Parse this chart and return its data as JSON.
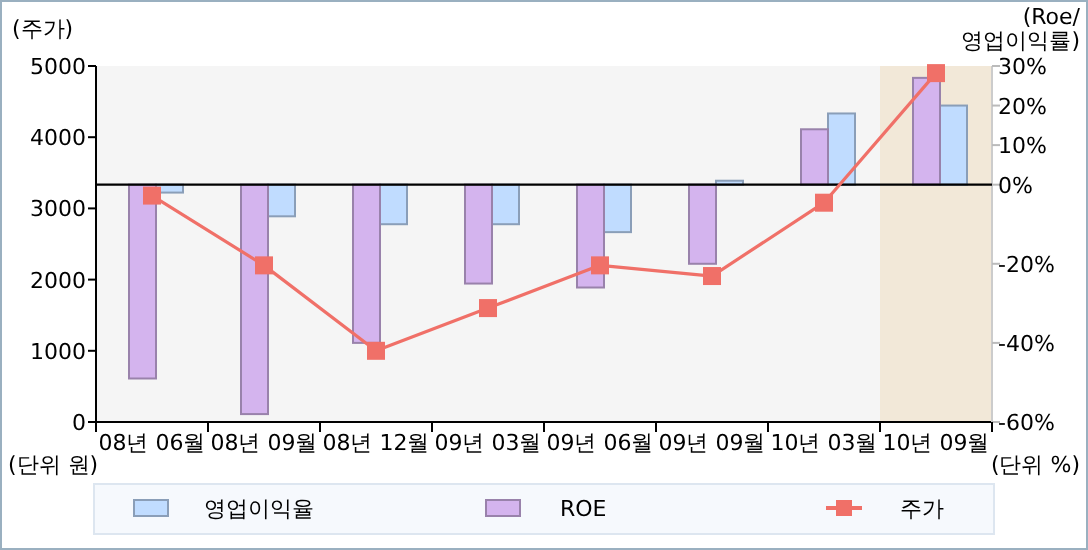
{
  "chart_data": {
    "type": "bar",
    "ylabel": "(주가)",
    "y2label": "(Roe/\n영업이익률)",
    "categories": [
      "08년 06월",
      "08년 09월",
      "08년 12월",
      "09년 03월",
      "09년 06월",
      "09년 09월",
      "10년 03월",
      "10년 09월"
    ],
    "series": [
      {
        "name": "영업이익율",
        "color": "#c0dcff",
        "axis": "y2",
        "values": [
          -2,
          -8,
          -10,
          -10,
          -12,
          1,
          18,
          20
        ]
      },
      {
        "name": "ROE",
        "color": "#d4b4ee",
        "axis": "y2",
        "values": [
          -49,
          -58,
          -40,
          -25,
          -26,
          -20,
          14,
          27
        ]
      },
      {
        "name": "주가",
        "type": "line",
        "color": "#f07068",
        "marker": "square",
        "values": [
          3180,
          2200,
          1000,
          1600,
          2200,
          2050,
          3080,
          4900
        ]
      }
    ],
    "ylim": [
      0,
      5000
    ],
    "yticks": [
      0,
      1000,
      2000,
      3000,
      4000,
      5000
    ],
    "y2lim": [
      -60,
      30
    ],
    "y2ticks": [
      {
        "value": 30,
        "label": "30%"
      },
      {
        "value": 20,
        "label": "20%"
      },
      {
        "value": 10,
        "label": "10%"
      },
      {
        "value": 0,
        "label": "0%"
      },
      {
        "value": -20,
        "label": "-20%"
      },
      {
        "value": -40,
        "label": "-40%"
      },
      {
        "value": -60,
        "label": "-60%"
      }
    ],
    "bands": [
      {
        "axis": "x",
        "from": "10년 09월",
        "to": "10년 09월",
        "color": "#f2e8d8"
      }
    ],
    "annotations": [
      "(단위 원)",
      "(단위 %)"
    ],
    "legend": "bottom"
  }
}
